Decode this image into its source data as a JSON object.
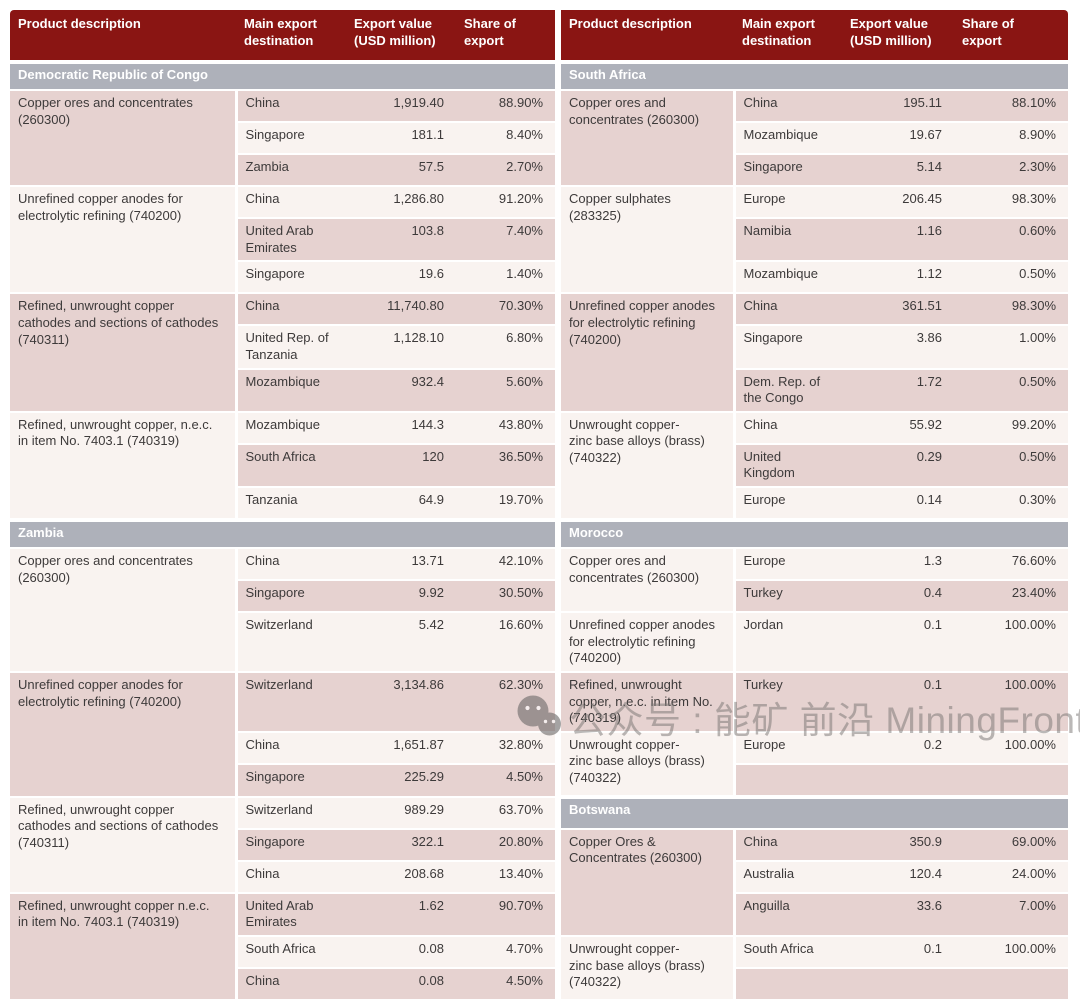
{
  "table": {
    "column_headers": [
      "Product description",
      "Main export\ndestination",
      "Export value\n(USD million)",
      "Share of\nexport"
    ],
    "rows": [
      {
        "left": {
          "section": "Democratic Republic of Congo"
        },
        "right": {
          "section": "South Africa"
        }
      },
      {
        "left": {
          "desc": "Copper ores and concentrates\n(260300)",
          "span": 3,
          "cells": [
            "China",
            "1,919.40",
            "88.90%"
          ]
        },
        "right": {
          "desc": "Copper ores and\nconcentrates (260300)",
          "span": 3,
          "cells": [
            "China",
            "195.11",
            "88.10%"
          ]
        }
      },
      {
        "left": {
          "cells": [
            "Singapore",
            "181.1",
            "8.40%"
          ]
        },
        "right": {
          "cells": [
            "Mozambique",
            "19.67",
            "8.90%"
          ]
        }
      },
      {
        "left": {
          "cells": [
            "Zambia",
            "57.5",
            "2.70%"
          ]
        },
        "right": {
          "cells": [
            "Singapore",
            "5.14",
            "2.30%"
          ]
        }
      },
      {
        "left": {
          "desc": "Unrefined copper anodes for\nelectrolytic refining (740200)",
          "span": 3,
          "cells": [
            "China",
            "1,286.80",
            "91.20%"
          ]
        },
        "right": {
          "desc": "Copper sulphates\n(283325)",
          "span": 3,
          "cells": [
            "Europe",
            "206.45",
            "98.30%"
          ]
        }
      },
      {
        "left": {
          "cells": [
            "United Arab\nEmirates",
            "103.8",
            "7.40%"
          ]
        },
        "right": {
          "cells": [
            "Namibia",
            "1.16",
            "0.60%"
          ]
        }
      },
      {
        "left": {
          "cells": [
            "Singapore",
            "19.6",
            "1.40%"
          ]
        },
        "right": {
          "cells": [
            "Mozambique",
            "1.12",
            "0.50%"
          ]
        }
      },
      {
        "left": {
          "desc": "Refined, unwrought copper\ncathodes and sections of cathodes\n(740311)",
          "span": 3,
          "cells": [
            "China",
            "11,740.80",
            "70.30%"
          ]
        },
        "right": {
          "desc": "Unrefined copper anodes\nfor electrolytic refining\n(740200)",
          "span": 3,
          "cells": [
            "China",
            "361.51",
            "98.30%"
          ]
        }
      },
      {
        "left": {
          "cells": [
            "United Rep. of\nTanzania",
            "1,128.10",
            "6.80%"
          ]
        },
        "right": {
          "cells": [
            "Singapore",
            "3.86",
            "1.00%"
          ]
        }
      },
      {
        "left": {
          "cells": [
            "Mozambique",
            "932.4",
            "5.60%"
          ]
        },
        "right": {
          "cells": [
            "Dem. Rep. of\nthe Congo",
            "1.72",
            "0.50%"
          ]
        }
      },
      {
        "left": {
          "desc": "Refined, unwrought copper, n.e.c.\nin item No. 7403.1 (740319)",
          "span": 3,
          "cells": [
            "Mozambique",
            "144.3",
            "43.80%"
          ]
        },
        "right": {
          "desc": "Unwrought copper-\nzinc base alloys (brass)\n(740322)",
          "span": 3,
          "cells": [
            "China",
            "55.92",
            "99.20%"
          ]
        }
      },
      {
        "left": {
          "cells": [
            "South Africa",
            "120",
            "36.50%"
          ]
        },
        "right": {
          "cells": [
            "United Kingdom",
            "0.29",
            "0.50%"
          ]
        }
      },
      {
        "left": {
          "cells": [
            "Tanzania",
            "64.9",
            "19.70%"
          ]
        },
        "right": {
          "cells": [
            "Europe",
            "0.14",
            "0.30%"
          ]
        }
      },
      {
        "left": {
          "section": "Zambia"
        },
        "right": {
          "section": "Morocco"
        }
      },
      {
        "left": {
          "desc": "Copper ores and concentrates\n(260300)",
          "span": 3,
          "cells": [
            "China",
            "13.71",
            "42.10%"
          ]
        },
        "right": {
          "desc": "Copper ores and\nconcentrates (260300)",
          "span": 2,
          "cells": [
            "Europe",
            "1.3",
            "76.60%"
          ]
        }
      },
      {
        "left": {
          "cells": [
            "Singapore",
            "9.92",
            "30.50%"
          ]
        },
        "right": {
          "cells": [
            "Turkey",
            "0.4",
            "23.40%"
          ]
        }
      },
      {
        "left": {
          "cells": [
            "Switzerland",
            "5.42",
            "16.60%"
          ]
        },
        "right": {
          "desc": "Unrefined copper anodes\nfor electrolytic refining\n(740200)",
          "span": 1,
          "cells": [
            "Jordan",
            "0.1",
            "100.00%"
          ]
        }
      },
      {
        "left": {
          "desc": "Unrefined copper anodes for\nelectrolytic refining (740200)",
          "span": 3,
          "cells": [
            "Switzerland",
            "3,134.86",
            "62.30%"
          ]
        },
        "right": {
          "desc": "Refined, unwrought\ncopper, n.e.c. in item No.\n(740319)",
          "span": 1,
          "cells": [
            "Turkey",
            "0.1",
            "100.00%"
          ]
        }
      },
      {
        "left": {
          "cells": [
            "China",
            "1,651.87",
            "32.80%"
          ]
        },
        "right": {
          "desc": "Unwrought copper-\nzinc base alloys (brass)\n(740322)",
          "span": 2,
          "cells": [
            "Europe",
            "0.2",
            "100.00%"
          ]
        }
      },
      {
        "left": {
          "cells": [
            "Singapore",
            "225.29",
            "4.50%"
          ]
        },
        "right": {
          "cells": [
            "",
            "",
            ""
          ]
        }
      },
      {
        "left": {
          "desc": "Refined, unwrought copper\ncathodes and sections of cathodes\n(740311)",
          "span": 3,
          "cells": [
            "Switzerland",
            "989.29",
            "63.70%"
          ]
        },
        "right": {
          "section": "Botswana"
        }
      },
      {
        "left": {
          "cells": [
            "Singapore",
            "322.1",
            "20.80%"
          ]
        },
        "right": {
          "desc": "Copper Ores &\nConcentrates (260300)",
          "span": 3,
          "cells": [
            "China",
            "350.9",
            "69.00%"
          ]
        }
      },
      {
        "left": {
          "cells": [
            "China",
            "208.68",
            "13.40%"
          ]
        },
        "right": {
          "cells": [
            "Australia",
            "120.4",
            "24.00%"
          ]
        }
      },
      {
        "left": {
          "desc": "Refined, unwrought copper n.e.c.\nin item No. 7403.1 (740319)",
          "span": 3,
          "cells": [
            "United Arab\nEmirates",
            "1.62",
            "90.70%"
          ]
        },
        "right": {
          "cells": [
            "Anguilla",
            "33.6",
            "7.00%"
          ]
        }
      },
      {
        "left": {
          "cells": [
            "South Africa",
            "0.08",
            "4.70%"
          ]
        },
        "right": {
          "desc": "Unwrought copper-\nzinc base alloys (brass)\n(740322)",
          "span": 2,
          "cells": [
            "South Africa",
            "0.1",
            "100.00%"
          ]
        }
      },
      {
        "left": {
          "cells": [
            "China",
            "0.08",
            "4.50%"
          ]
        },
        "right": {
          "cells": [
            "",
            "",
            ""
          ]
        }
      }
    ]
  },
  "watermark": {
    "icon": "wechat-icon",
    "text": "公众号 : 能矿 前沿 MiningFrontier"
  },
  "colors": {
    "header_bg": "#8A1513",
    "section_bg": "#AEB1BA",
    "row_pink": "#E6D2D0",
    "row_cream": "#F9F3F0",
    "header_text": "#FFFFFF",
    "body_text": "#3D3A3A",
    "separator": "#FFFFFF",
    "watermark_gray": "#8D8A89"
  }
}
